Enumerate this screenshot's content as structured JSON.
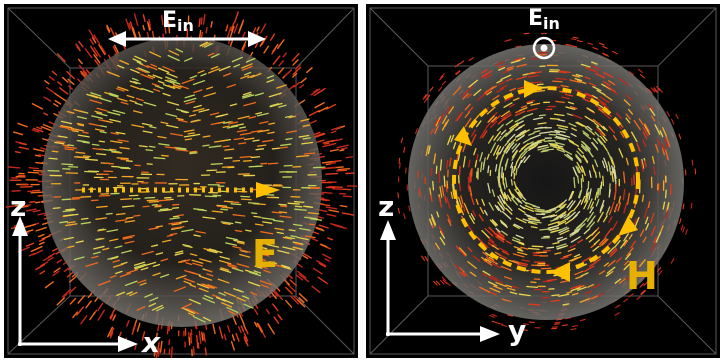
{
  "panels": [
    {
      "id": "electric",
      "incident_label": "E",
      "incident_sub": "in",
      "field_letter": "E",
      "axis_vertical": "z",
      "axis_horizontal": "x",
      "field_color": "#e6b000"
    },
    {
      "id": "magnetic",
      "incident_label": "E",
      "incident_sub": "in",
      "field_letter": "H",
      "axis_vertical": "z",
      "axis_horizontal": "y",
      "field_color": "#e6b000"
    }
  ]
}
